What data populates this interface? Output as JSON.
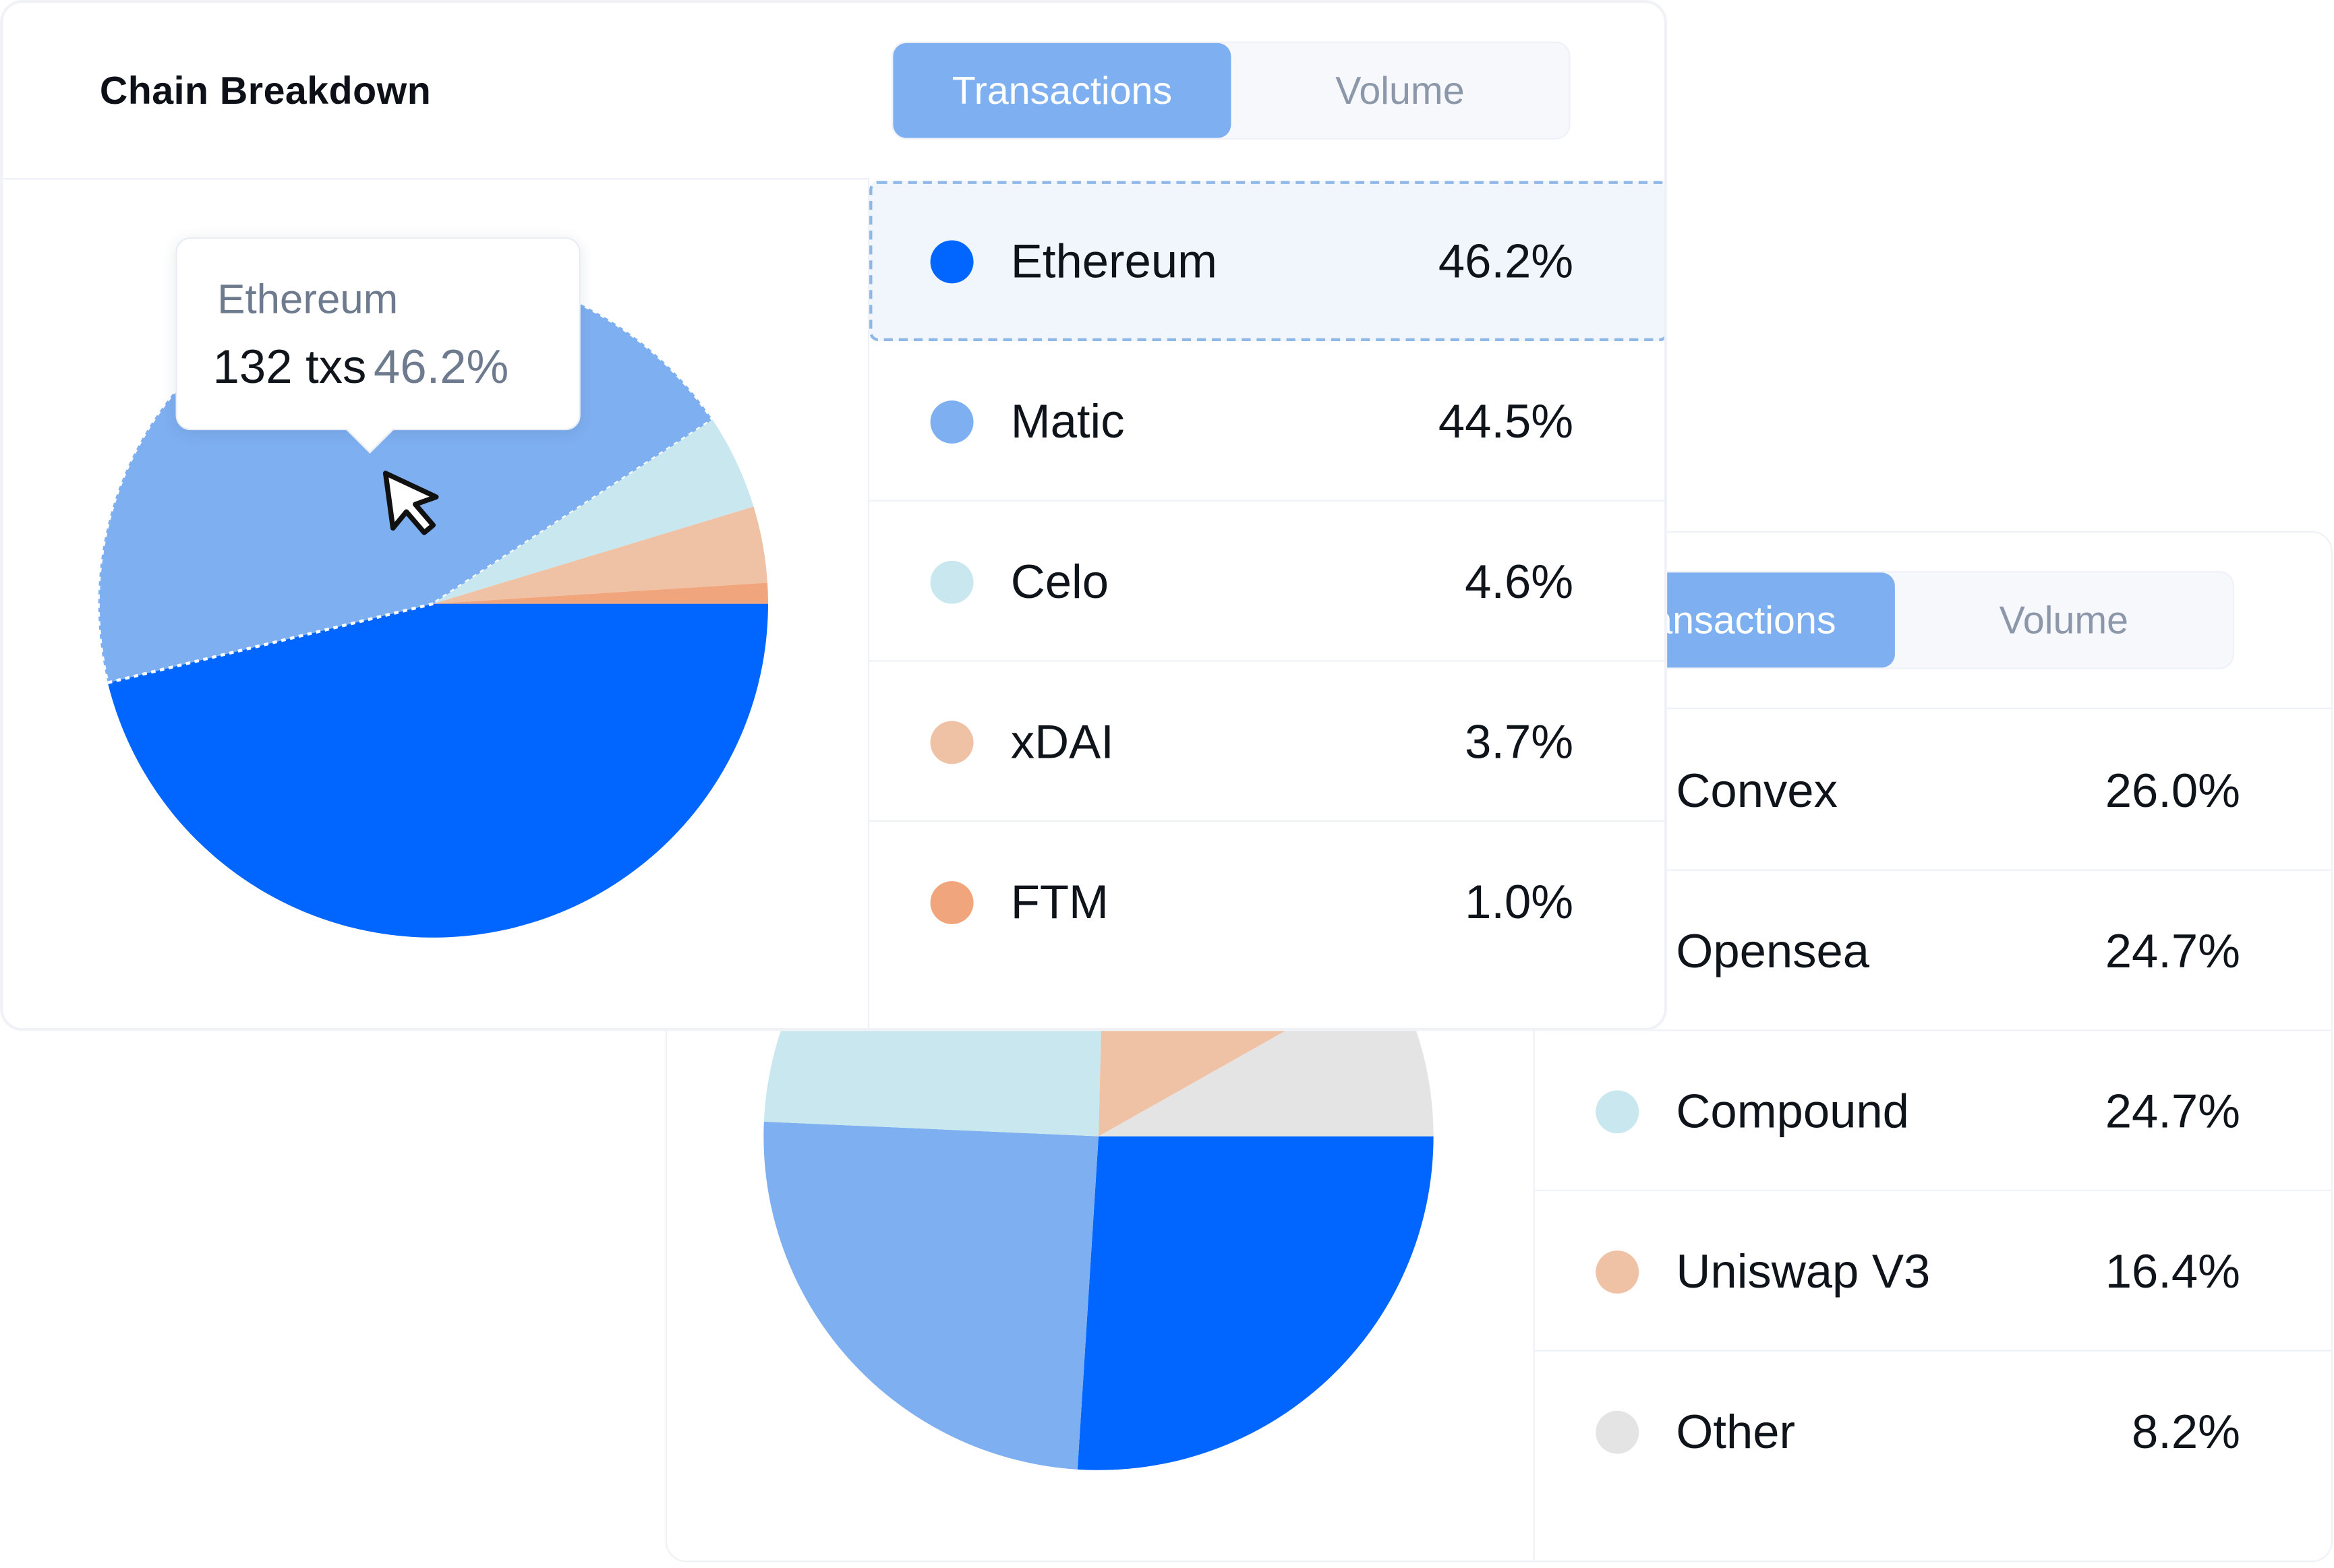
{
  "front": {
    "title": "Chain Breakdown",
    "tabs": [
      {
        "label": "Transactions",
        "active": true
      },
      {
        "label": "Volume",
        "active": false
      }
    ],
    "tooltip": {
      "name": "Ethereum",
      "count": "132 txs",
      "percent": "46.2%"
    },
    "legend": [
      {
        "name": "Ethereum",
        "value": "46.2%",
        "color": "#0066ff",
        "highlighted": true
      },
      {
        "name": "Matic",
        "value": "44.5%",
        "color": "#7eaff0"
      },
      {
        "name": "Celo",
        "value": "4.6%",
        "color": "#c8e7ef"
      },
      {
        "name": "xDAI",
        "value": "3.7%",
        "color": "#f0c2a5"
      },
      {
        "name": "FTM",
        "value": "1.0%",
        "color": "#f0a57c"
      }
    ]
  },
  "back": {
    "tabs": [
      {
        "label": "Transactions",
        "active": true
      },
      {
        "label": "Volume",
        "active": false
      }
    ],
    "legend": [
      {
        "name": "Convex",
        "value": "26.0%",
        "color": "#0066ff"
      },
      {
        "name": "Opensea",
        "value": "24.7%",
        "color": "#7eaff0"
      },
      {
        "name": "Compound",
        "value": "24.7%",
        "color": "#c8e7ef"
      },
      {
        "name": "Uniswap V3",
        "value": "16.4%",
        "color": "#f0c2a5"
      },
      {
        "name": "Other",
        "value": "8.2%",
        "color": "#e4e4e4"
      }
    ]
  },
  "chart_data": [
    {
      "type": "pie",
      "title": "Chain Breakdown",
      "categories": [
        "Ethereum",
        "Matic",
        "Celo",
        "xDAI",
        "FTM"
      ],
      "values": [
        46.2,
        44.5,
        4.6,
        3.7,
        1.0
      ],
      "colors": [
        "#0066ff",
        "#7eaff0",
        "#c8e7ef",
        "#f0c2a5",
        "#f0a57c"
      ]
    },
    {
      "type": "pie",
      "categories": [
        "Convex",
        "Opensea",
        "Compound",
        "Uniswap V3",
        "Other"
      ],
      "values": [
        26.0,
        24.7,
        24.7,
        16.4,
        8.2
      ],
      "colors": [
        "#0066ff",
        "#7eaff0",
        "#c8e7ef",
        "#f0c2a5",
        "#e4e4e4"
      ]
    }
  ]
}
